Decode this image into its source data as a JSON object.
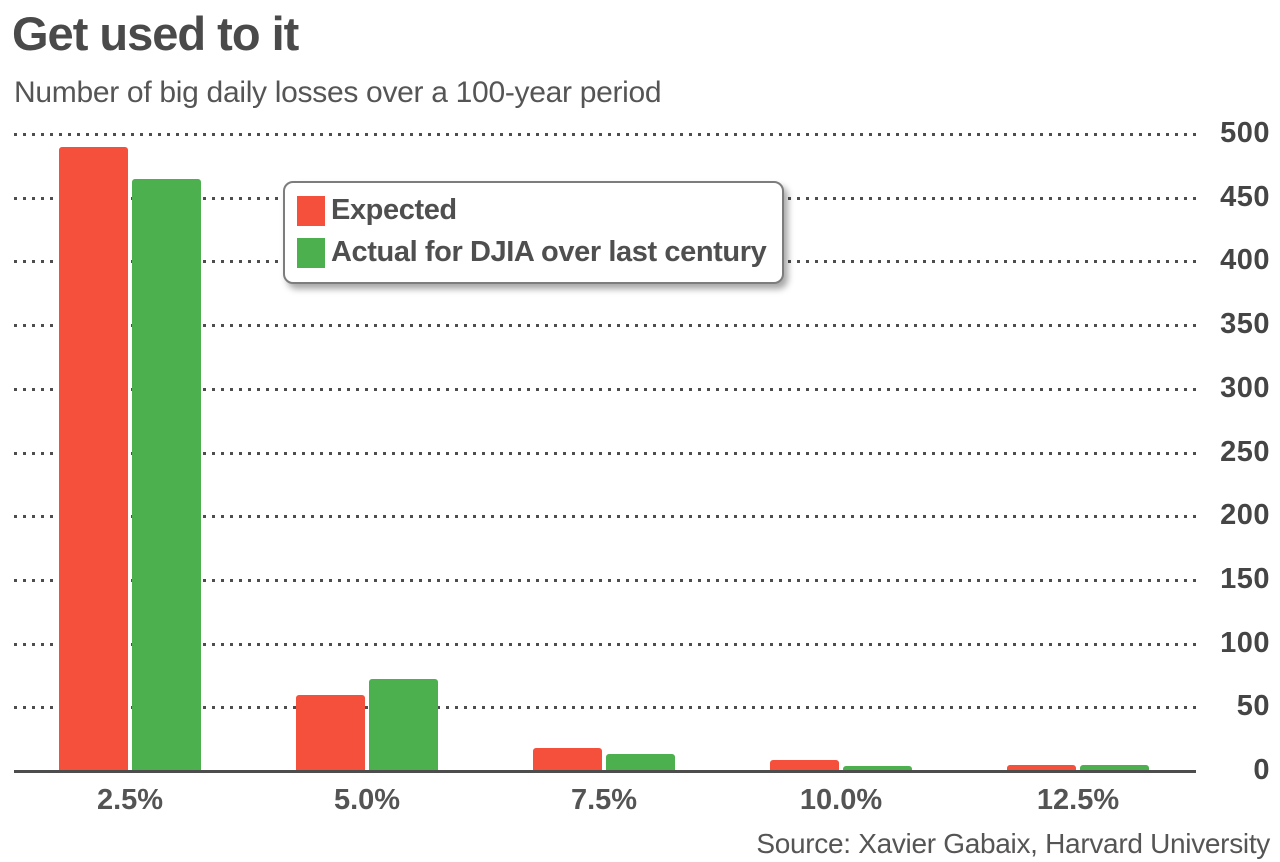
{
  "header": {
    "title": "Get used to it",
    "subtitle": "Number of big daily losses over a 100-year period"
  },
  "legend": {
    "items": [
      {
        "key": "expected",
        "label": "Expected",
        "color": "#f4503c"
      },
      {
        "key": "actual",
        "label": "Actual for DJIA over last century",
        "color": "#4cb04e"
      }
    ]
  },
  "source": "Source: Xavier Gabaix, Harvard University",
  "colors": {
    "expected": "#f4503c",
    "actual": "#4cb04e",
    "text": "#4a4a4a",
    "grid": "#4d4d4d"
  },
  "chart_data": {
    "type": "bar",
    "title": "Get used to it",
    "subtitle": "Number of big daily losses over a 100-year period",
    "categories": [
      "2.5%",
      "5.0%",
      "7.5%",
      "10.0%",
      "12.5%"
    ],
    "series": [
      {
        "key": "expected",
        "name": "Expected",
        "color": "#f4503c",
        "values": [
          490,
          60,
          18,
          9,
          5
        ]
      },
      {
        "key": "actual",
        "name": "Actual for DJIA over last century",
        "color": "#4cb04e",
        "values": [
          465,
          72,
          13,
          4,
          5
        ]
      }
    ],
    "xlabel": "",
    "ylabel": "",
    "ylim": [
      0,
      500
    ],
    "yticks": [
      0,
      50,
      100,
      150,
      200,
      250,
      300,
      350,
      400,
      450,
      500
    ],
    "ytick_side": "right",
    "grid": "horizontal-dotted",
    "legend_position": "upper-left-inside",
    "source": "Source: Xavier Gabaix, Harvard University"
  }
}
